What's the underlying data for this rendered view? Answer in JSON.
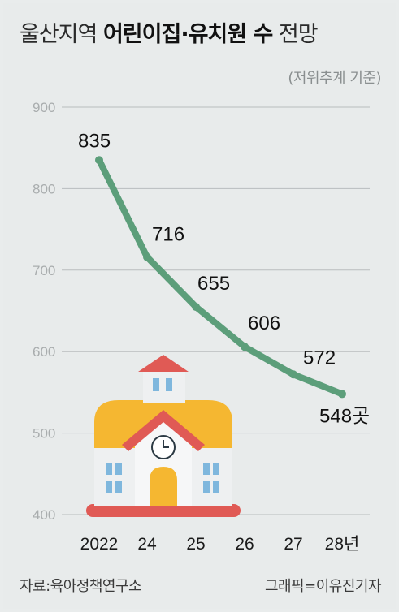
{
  "header": {
    "title_light": "울산지역",
    "title_bold": "어린이집·유치원 수",
    "title_tail": "전망",
    "subtitle": "(저위추계 기준)"
  },
  "footer": {
    "source": "자료:육아정책연구소",
    "credit": "그래픽=이유진기자"
  },
  "colors": {
    "line": "#5c9e7a",
    "grid": "#b9bdbe",
    "background": "#e8ebeb"
  },
  "illustration": "school-building-icon",
  "chart_data": {
    "type": "line",
    "categories": [
      "2022",
      "24",
      "25",
      "26",
      "27",
      "28년"
    ],
    "series": [
      {
        "values": [
          835,
          716,
          655,
          606,
          572,
          548
        ]
      }
    ],
    "data_labels": [
      "835",
      "716",
      "655",
      "606",
      "572",
      "548곳"
    ],
    "yticks": [
      "900",
      "800",
      "700",
      "600",
      "500",
      "400"
    ],
    "ylim": [
      400,
      900
    ],
    "grid": true,
    "xlabel": "",
    "ylabel": ""
  }
}
